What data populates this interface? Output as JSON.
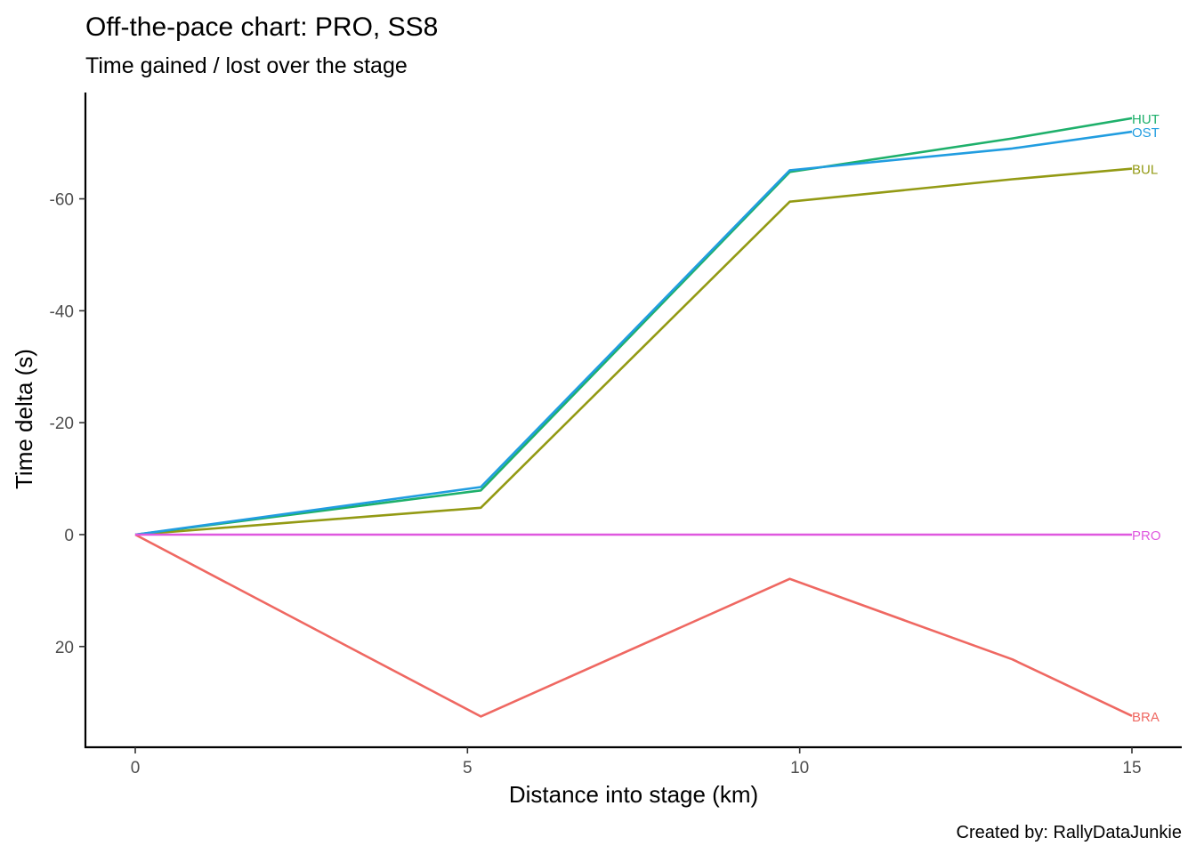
{
  "chart_data": {
    "type": "line",
    "title": "Off-the-pace chart: PRO, SS8",
    "subtitle": "Time gained / lost over the stage",
    "xlabel": "Distance into stage (km)",
    "ylabel": "Time delta (s)",
    "caption": "Created by: RallyDataJunkie",
    "xlim": [
      -0.75,
      15.75
    ],
    "ylim": [
      -79,
      38
    ],
    "y_reversed": true,
    "x_ticks": [
      0,
      5,
      10,
      15
    ],
    "x_tick_labels": [
      "0",
      "5",
      "10",
      "15"
    ],
    "y_ticks": [
      -60,
      -40,
      -20,
      0,
      20
    ],
    "y_tick_labels": [
      "-60",
      "-40",
      "-20",
      "0",
      "20"
    ],
    "grid": false,
    "legend": "none (series labelled at line ends)",
    "series": [
      {
        "name": "HUT",
        "color": "#1eb06b",
        "x": [
          0,
          5.2,
          9.85,
          13.2,
          15
        ],
        "y": [
          0,
          -7.9,
          -64.8,
          -70.8,
          -74.4
        ]
      },
      {
        "name": "OST",
        "color": "#219de0",
        "x": [
          0,
          5.2,
          9.85,
          13.2,
          15
        ],
        "y": [
          0,
          -8.5,
          -65.1,
          -69.0,
          -72.0
        ]
      },
      {
        "name": "BUL",
        "color": "#939a14",
        "x": [
          0,
          5.2,
          9.85,
          13.2,
          15
        ],
        "y": [
          0,
          -4.8,
          -59.5,
          -63.5,
          -65.4
        ]
      },
      {
        "name": "PRO",
        "color": "#df58df",
        "x": [
          0,
          5.2,
          9.85,
          13.2,
          15
        ],
        "y": [
          0,
          0,
          0,
          0,
          0
        ]
      },
      {
        "name": "BRA",
        "color": "#ef6862",
        "x": [
          0,
          5.2,
          9.85,
          13.2,
          15
        ],
        "y": [
          0,
          32.5,
          7.9,
          22.3,
          32.4
        ]
      }
    ]
  }
}
